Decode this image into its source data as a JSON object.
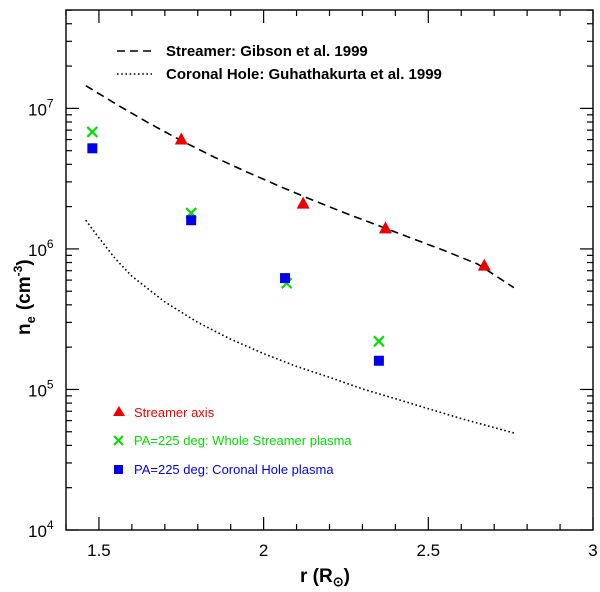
{
  "chart_data": {
    "type": "scatter",
    "title": "",
    "xlabel_main": "r (R",
    "xlabel_sub": "⊙",
    "xlabel_close": ")",
    "ylabel_main": "n",
    "ylabel_sub": "e",
    "ylabel_unit": "(cm",
    "ylabel_exp": "-3",
    "ylabel_close": ")",
    "xlim": [
      1.4,
      3.0
    ],
    "ylim_log10": [
      4,
      7.7
    ],
    "xticks": [
      {
        "value": 1.5,
        "label": "1.5"
      },
      {
        "value": 2.0,
        "label": "2"
      },
      {
        "value": 2.5,
        "label": "2.5"
      },
      {
        "value": 3.0,
        "label": "3"
      }
    ],
    "yticks": [
      {
        "exp": 4,
        "base": "10",
        "sup": "4"
      },
      {
        "exp": 5,
        "base": "10",
        "sup": "5"
      },
      {
        "exp": 6,
        "base": "10",
        "sup": "6"
      },
      {
        "exp": 7,
        "base": "10",
        "sup": "7"
      }
    ],
    "model_curves": [
      {
        "name": "Streamer: Gibson et al. 1999",
        "style": "dashed",
        "r": [
          1.46,
          1.55,
          1.65,
          1.75,
          1.85,
          1.95,
          2.05,
          2.15,
          2.25,
          2.35,
          2.45,
          2.55,
          2.65,
          2.76
        ],
        "ne": [
          14500000,
          10800000,
          7900000,
          5900000,
          4500000,
          3520000,
          2780000,
          2220000,
          1790000,
          1460000,
          1190000,
          970000,
          780000,
          530000
        ]
      },
      {
        "name": "Coronal Hole: Guhathakurta et al. 1999",
        "style": "dotted",
        "r": [
          1.46,
          1.5,
          1.55,
          1.6,
          1.7,
          1.8,
          1.9,
          2.0,
          2.1,
          2.2,
          2.3,
          2.4,
          2.5,
          2.6,
          2.76
        ],
        "ne": [
          1600000,
          1200000,
          850000,
          640000,
          420000,
          300000,
          228000,
          180000,
          146000,
          122000,
          101000,
          86000,
          73000,
          62000,
          49000
        ]
      }
    ],
    "series": [
      {
        "name": "Streamer axis",
        "marker": "triangle",
        "color": "#ee0000",
        "r": [
          1.75,
          2.12,
          2.37,
          2.67
        ],
        "ne": [
          6000000,
          2100000,
          1400000,
          760000
        ]
      },
      {
        "name": "PA=225 deg: Whole Streamer plasma",
        "marker": "cross",
        "color": "#00dd00",
        "r": [
          1.48,
          1.78,
          2.07,
          2.35
        ],
        "ne": [
          6800000,
          1800000,
          570000,
          220000
        ]
      },
      {
        "name": "PA=225 deg: Coronal Hole plasma",
        "marker": "square",
        "color": "#0000ee",
        "r": [
          1.48,
          1.78,
          2.065,
          2.35
        ],
        "ne": [
          5200000,
          1600000,
          620000,
          160000
        ]
      }
    ]
  }
}
